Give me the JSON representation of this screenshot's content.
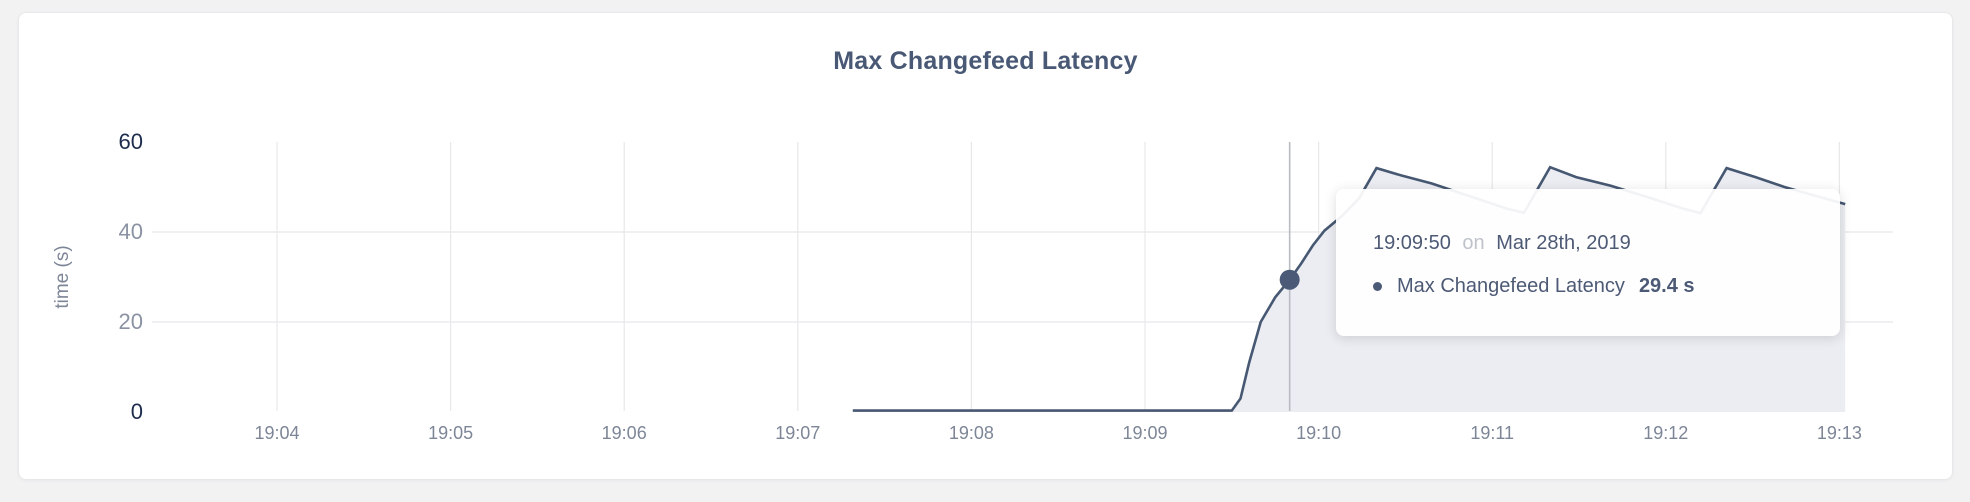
{
  "card": {
    "title": "Max Changefeed Latency"
  },
  "colors": {
    "title": "#485875",
    "line": "#475872",
    "area_fill": "#ebedf3",
    "grid": "#e8e8eb",
    "hover_line": "#b9bcc3",
    "dot": "#4a5a77",
    "axis_extreme": "#1d2c4c",
    "axis_mid": "#8a92a3",
    "x_label": "#7d8697",
    "y_axis_title": "#7d8697",
    "tooltip_text": "#4d5a75",
    "tooltip_muted": "#bfc3ca"
  },
  "tooltip": {
    "time": "19:09:50",
    "on_word": "on",
    "date": "Mar 28th, 2019",
    "series_label": "Max Changefeed Latency",
    "value": "29.4 s"
  },
  "chart_data": {
    "type": "area",
    "title": "Max Changefeed Latency",
    "xlabel": "",
    "ylabel": "time (s)",
    "ylim": [
      0,
      60
    ],
    "yticks": [
      0,
      20,
      40,
      60
    ],
    "xticks": [
      "19:04",
      "19:05",
      "19:06",
      "19:07",
      "19:08",
      "19:09",
      "19:10",
      "19:11",
      "19:12",
      "19:13"
    ],
    "grid": "on",
    "legend_position": "none",
    "series": [
      {
        "name": "Max Changefeed Latency",
        "points": [
          [
            "19:07:19",
            0.3
          ],
          [
            "19:09:30",
            0.3
          ],
          [
            "19:09:33",
            3
          ],
          [
            "19:09:36",
            11
          ],
          [
            "19:09:40",
            20
          ],
          [
            "19:09:45",
            25.5
          ],
          [
            "19:09:50",
            29.4
          ],
          [
            "19:09:54",
            33
          ],
          [
            "19:09:58",
            37
          ],
          [
            "19:10:02",
            40.3
          ],
          [
            "19:10:08",
            43.5
          ],
          [
            "19:10:14",
            47.5
          ],
          [
            "19:10:20",
            54.2
          ],
          [
            "19:10:29",
            52.5
          ],
          [
            "19:10:39",
            50.8
          ],
          [
            "19:10:53",
            47.8
          ],
          [
            "19:11:05",
            45.2
          ],
          [
            "19:11:11",
            44.3
          ],
          [
            "19:11:20",
            54.4
          ],
          [
            "19:11:29",
            52.2
          ],
          [
            "19:11:41",
            50.3
          ],
          [
            "19:11:55",
            47.5
          ],
          [
            "19:12:06",
            45.2
          ],
          [
            "19:12:12",
            44.2
          ],
          [
            "19:12:21",
            54.2
          ],
          [
            "19:12:31",
            52.2
          ],
          [
            "19:12:41",
            50.0
          ],
          [
            "19:12:52",
            48.0
          ],
          [
            "19:13:02",
            46.2
          ]
        ]
      }
    ],
    "hover": {
      "time": "19:09:50",
      "date": "Mar 28th, 2019",
      "series": "Max Changefeed Latency",
      "value_seconds": 29.4,
      "value_display": "29.4 s"
    }
  }
}
